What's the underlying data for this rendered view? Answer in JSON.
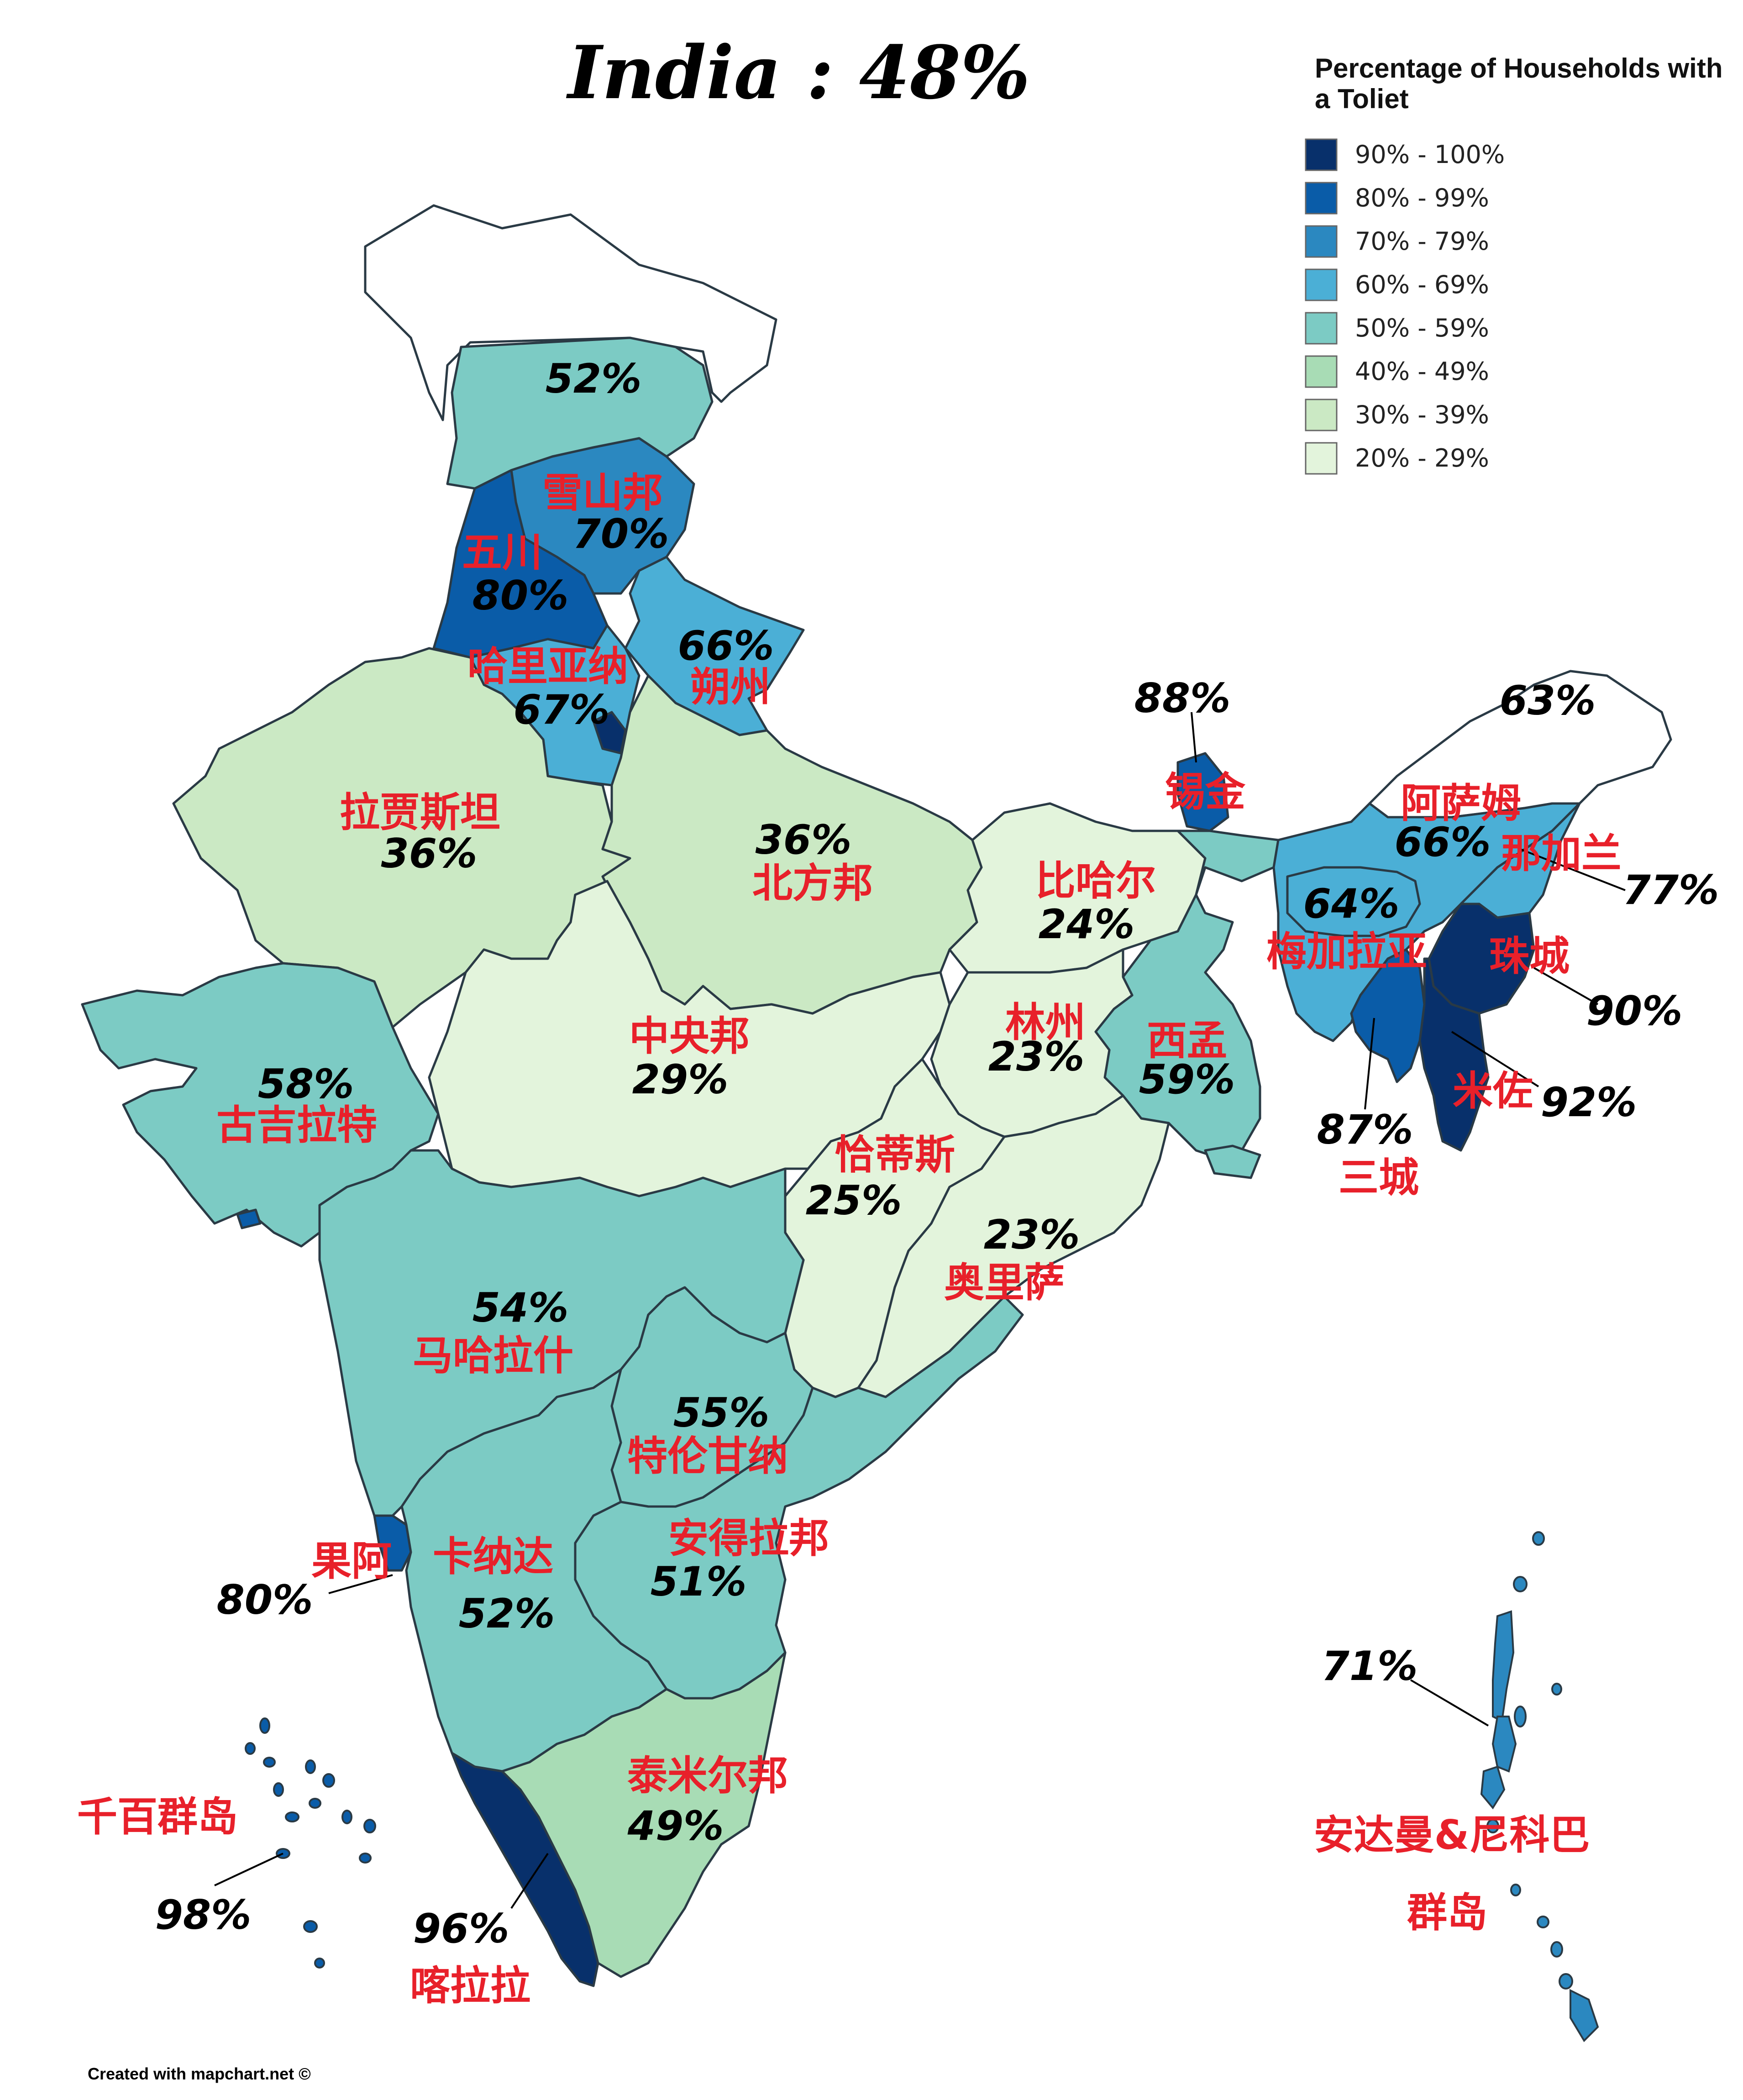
{
  "title": "India : 48%",
  "legend": {
    "title_line1": "Percentage of Households with",
    "title_line2": "a Toliet",
    "items": [
      {
        "label": "90% - 100%",
        "color": "#08306b"
      },
      {
        "label": "80% - 99%",
        "color": "#0a5ca8"
      },
      {
        "label": "70% - 79%",
        "color": "#2b88c0"
      },
      {
        "label": "60% - 69%",
        "color": "#4bafd6"
      },
      {
        "label": "50% - 59%",
        "color": "#7ccbc4"
      },
      {
        "label": "40% - 49%",
        "color": "#a8dcb5"
      },
      {
        "label": "30% - 39%",
        "color": "#cbe9c4"
      },
      {
        "label": "20% - 29%",
        "color": "#e3f4dc"
      }
    ]
  },
  "regions": {
    "jk": {
      "value": "52%",
      "name": ""
    },
    "hp": {
      "value": "70%",
      "name": "雪山邦"
    },
    "punjab": {
      "value": "80%",
      "name": "五川"
    },
    "haryana": {
      "value": "67%",
      "name": "哈里亚纳"
    },
    "uk": {
      "value": "66%",
      "name": "朔州"
    },
    "rajasthan": {
      "value": "36%",
      "name": "拉贾斯坦"
    },
    "up": {
      "value": "36%",
      "name": "北方邦"
    },
    "bihar": {
      "value": "24%",
      "name": "比哈尔"
    },
    "sikkim": {
      "value": "88%",
      "name": "锡金"
    },
    "arunachal": {
      "value": "63%",
      "name": ""
    },
    "assam": {
      "value": "66%",
      "name": "阿萨姆"
    },
    "nagaland": {
      "value": "77%",
      "name": "那加兰"
    },
    "meghalaya": {
      "value": "64%",
      "name": "梅加拉亚"
    },
    "manipur": {
      "value": "90%",
      "name": "珠城"
    },
    "mizoram": {
      "value": "92%",
      "name": "米佐"
    },
    "tripura": {
      "value": "87%",
      "name": "三城"
    },
    "mp": {
      "value": "29%",
      "name": "中央邦"
    },
    "jharkhand": {
      "value": "23%",
      "name": "林州"
    },
    "wb": {
      "value": "59%",
      "name": "西孟"
    },
    "gujarat": {
      "value": "58%",
      "name": "古吉拉特"
    },
    "chhattisgarh": {
      "value": "25%",
      "name": "恰蒂斯"
    },
    "odisha": {
      "value": "23%",
      "name": "奥里萨"
    },
    "maharashtra": {
      "value": "54%",
      "name": "马哈拉什"
    },
    "telangana": {
      "value": "55%",
      "name": "特伦甘纳"
    },
    "goa": {
      "value": "80%",
      "name": "果阿"
    },
    "karnataka": {
      "value": "52%",
      "name": "卡纳达"
    },
    "ap": {
      "value": "51%",
      "name": "安得拉邦"
    },
    "tn": {
      "value": "49%",
      "name": "泰米尔邦"
    },
    "kerala": {
      "value": "96%",
      "name": "喀拉拉"
    },
    "lakshadweep": {
      "value": "98%",
      "name": "千百群岛"
    },
    "andaman": {
      "value": "71%",
      "name_line1": "安达曼&尼科巴",
      "name_line2": "群岛"
    }
  },
  "credit": "Created with mapchart.net ©"
}
